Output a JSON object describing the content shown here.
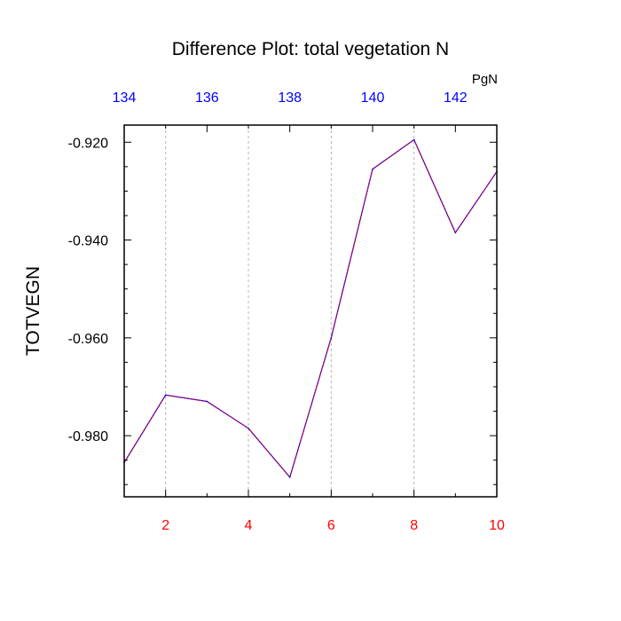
{
  "chart_data": {
    "type": "line",
    "title": "Difference Plot: total vegetation N",
    "ylabel": "TOTVEGN",
    "top_axis_unit": "PgN",
    "x": [
      1,
      2,
      3,
      4,
      5,
      6,
      7,
      8,
      9,
      10
    ],
    "series": [
      {
        "values": [
          -0.9855,
          -0.9717,
          -0.973,
          -0.9785,
          -0.9885,
          -0.96,
          -0.9255,
          -0.9195,
          -0.9385,
          -0.926
        ]
      }
    ],
    "xlim": [
      1,
      10
    ],
    "ylim": [
      -0.9925,
      -0.9165
    ],
    "x_ticks": [
      2,
      4,
      6,
      8,
      10
    ],
    "x_tick_labels": [
      "2",
      "4",
      "6",
      "8",
      "10"
    ],
    "top_ticks": [
      134,
      136,
      138,
      140,
      142
    ],
    "top_tick_labels": [
      "134",
      "136",
      "138",
      "140",
      "142"
    ],
    "top_lim": [
      134,
      143
    ],
    "y_ticks": [
      -0.92,
      -0.94,
      -0.96,
      -0.98
    ],
    "y_tick_labels": [
      "-0.920",
      "-0.940",
      "-0.960",
      "-0.980"
    ],
    "grid": "vertical dashed",
    "colors": {
      "line_dash_a": "#0000ff",
      "line_dash_b": "#ff0000",
      "bottom_tick_labels": "#ff0000",
      "top_tick_labels": "#0000ff",
      "grid": "#b4b4b4",
      "axes": "#000000"
    }
  }
}
